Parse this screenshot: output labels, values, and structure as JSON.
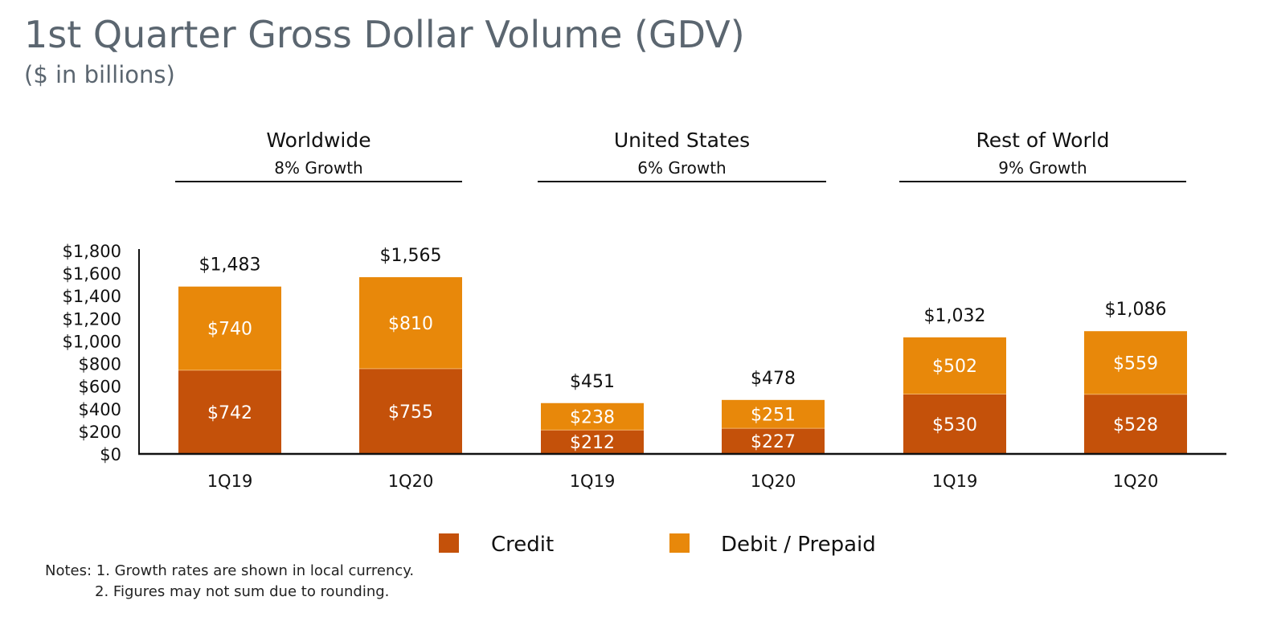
{
  "title": "1st Quarter Gross Dollar Volume (GDV)",
  "subtitle": "($ in billions)",
  "notes": {
    "line1": "Notes: 1.  Growth rates are shown in local currency.",
    "line2": "2.  Figures may not sum due to rounding."
  },
  "colors": {
    "credit": "#c4510a",
    "debit": "#e8880a",
    "axis": "#111111",
    "text": "#111111"
  },
  "chart_data": {
    "type": "bar",
    "stacked": true,
    "groups": [
      {
        "name": "Worldwide",
        "growth": "8% Growth"
      },
      {
        "name": "United States",
        "growth": "6% Growth"
      },
      {
        "name": "Rest of World",
        "growth": "9% Growth"
      }
    ],
    "categories": [
      "1Q19",
      "1Q20",
      "1Q19",
      "1Q20",
      "1Q19",
      "1Q20"
    ],
    "series": [
      {
        "name": "Credit",
        "values": [
          742,
          755,
          212,
          227,
          530,
          528
        ],
        "labels": [
          "$742",
          "$755",
          "$212",
          "$227",
          "$530",
          "$528"
        ]
      },
      {
        "name": "Debit / Prepaid",
        "values": [
          740,
          810,
          238,
          251,
          502,
          559
        ],
        "labels": [
          "$740",
          "$810",
          "$238",
          "$251",
          "$502",
          "$559"
        ]
      }
    ],
    "totals": [
      1483,
      1565,
      451,
      478,
      1032,
      1086
    ],
    "total_labels": [
      "$1,483",
      "$1,565",
      "$451",
      "$478",
      "$1,032",
      "$1,086"
    ],
    "ylim": [
      0,
      1800
    ],
    "yticks": [
      "$0",
      "$200",
      "$400",
      "$600",
      "$800",
      "$1,000",
      "$1,200",
      "$1,400",
      "$1,600",
      "$1,800"
    ],
    "ytick_values": [
      0,
      200,
      400,
      600,
      800,
      1000,
      1200,
      1400,
      1600,
      1800
    ],
    "legend": {
      "position": "bottom"
    },
    "grid": false
  }
}
